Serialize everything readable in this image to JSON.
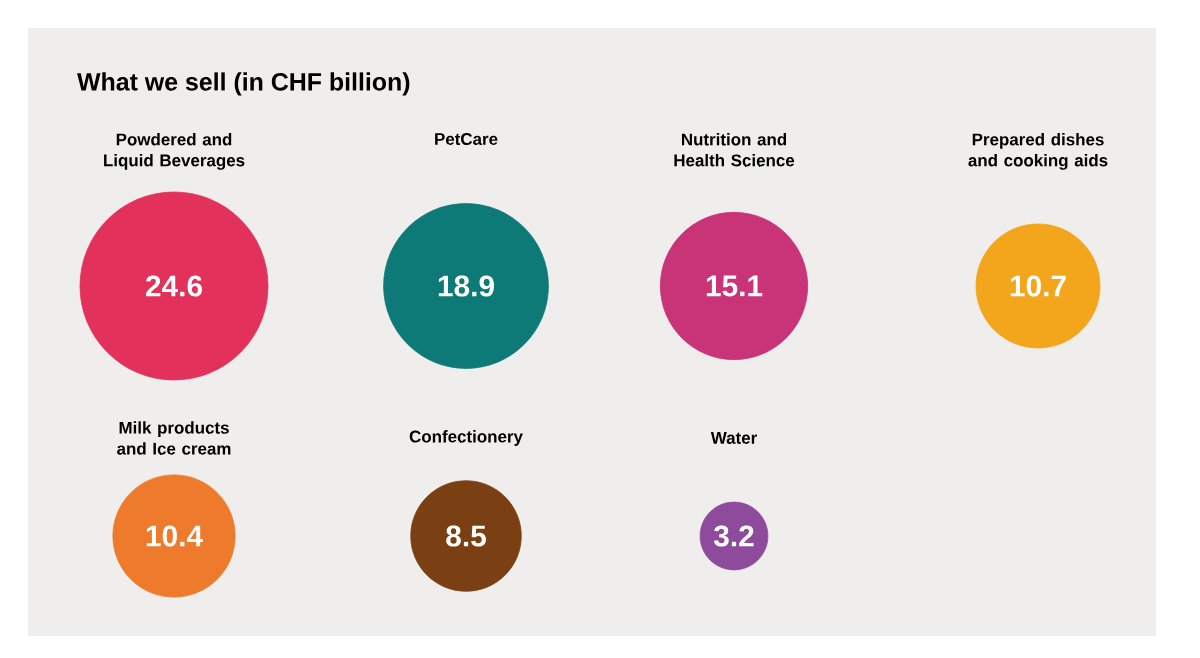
{
  "chart_data": {
    "type": "other",
    "title": "What we sell (in CHF billion)",
    "categories": [
      "Powdered and Liquid Beverages",
      "PetCare",
      "Nutrition and Health Science",
      "Prepared dishes and cooking aids",
      "Milk products and Ice cream",
      "Confectionery",
      "Water"
    ],
    "values": [
      24.6,
      18.9,
      15.1,
      10.7,
      10.4,
      8.5,
      3.2
    ],
    "colors": [
      "#e2325c",
      "#0e7a78",
      "#c93479",
      "#f3a51b",
      "#ee7a2b",
      "#7a3f12",
      "#8e4b9b"
    ],
    "data_labels": true
  }
}
